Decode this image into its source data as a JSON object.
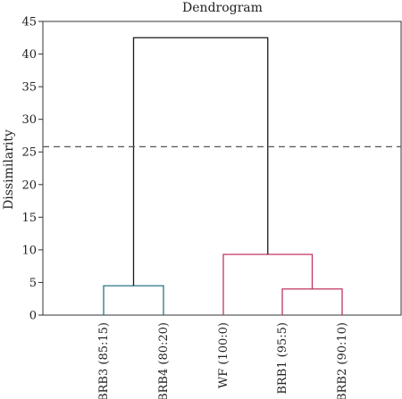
{
  "chart_data": {
    "type": "dendrogram",
    "title": "Dendrogram",
    "ylabel": "Dissimilarity",
    "ylim": [
      0,
      45
    ],
    "yticks": [
      0,
      5,
      10,
      15,
      20,
      25,
      30,
      35,
      40,
      45
    ],
    "leaves": [
      "BRB3 (85:15)",
      "BRB4 (80:20)",
      "WF (100:0)",
      "BRB1 (95:5)",
      "BRB2 (90:10)"
    ],
    "merges": [
      {
        "left": "BRB3 (85:15)",
        "right": "BRB4 (80:20)",
        "height": 4.5,
        "cluster_color": "#2a7388"
      },
      {
        "left": "BRB1 (95:5)",
        "right": "BRB2 (90:10)",
        "height": 4.0,
        "cluster_color": "#c0365e"
      },
      {
        "left": "WF (100:0)",
        "right": "BRB1 + BRB2",
        "height": 9.3,
        "cluster_color": "#c0365e"
      },
      {
        "left": "BRB3 + BRB4",
        "right": "WF + BRB1 + BRB2",
        "height": 42.5,
        "cluster_color": "#1a1a1a"
      }
    ],
    "cutoff_line": 25.8,
    "cutoff_style": "dashed",
    "grid": false
  }
}
